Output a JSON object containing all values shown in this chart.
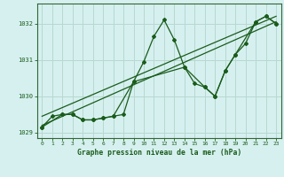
{
  "title": "Graphe pression niveau de la mer (hPa)",
  "bg_color": "#d6f0f0",
  "grid_color": "#b8d8d0",
  "line_color": "#1a5c1a",
  "xlim": [
    -0.5,
    23.5
  ],
  "ylim": [
    1028.85,
    1032.55
  ],
  "yticks": [
    1029,
    1030,
    1031,
    1032
  ],
  "xticks": [
    0,
    1,
    2,
    3,
    4,
    5,
    6,
    7,
    8,
    9,
    10,
    11,
    12,
    13,
    14,
    15,
    16,
    17,
    18,
    19,
    20,
    21,
    22,
    23
  ],
  "series_main": {
    "x": [
      0,
      1,
      2,
      3,
      4,
      5,
      6,
      7,
      8,
      9,
      10,
      11,
      12,
      13,
      14,
      15,
      16,
      17,
      18,
      19,
      20,
      21,
      22,
      23
    ],
    "y": [
      1029.15,
      1029.45,
      1029.5,
      1029.5,
      1029.35,
      1029.35,
      1029.4,
      1029.45,
      1029.5,
      1030.4,
      1030.95,
      1031.65,
      1032.1,
      1031.55,
      1030.8,
      1030.35,
      1030.25,
      1030.0,
      1030.7,
      1031.15,
      1031.45,
      1032.05,
      1032.2,
      1032.0
    ]
  },
  "series_sparse": {
    "x": [
      0,
      2,
      3,
      4,
      5,
      6,
      7,
      9,
      14,
      16,
      17,
      18,
      19,
      21,
      22,
      23
    ],
    "y": [
      1029.15,
      1029.5,
      1029.5,
      1029.35,
      1029.35,
      1029.4,
      1029.45,
      1030.4,
      1030.8,
      1030.25,
      1030.0,
      1030.7,
      1031.15,
      1032.05,
      1032.2,
      1032.0
    ]
  },
  "trend1": {
    "x": [
      0,
      23
    ],
    "y": [
      1029.2,
      1032.05
    ]
  },
  "trend2": {
    "x": [
      0,
      23
    ],
    "y": [
      1029.45,
      1032.2
    ]
  }
}
